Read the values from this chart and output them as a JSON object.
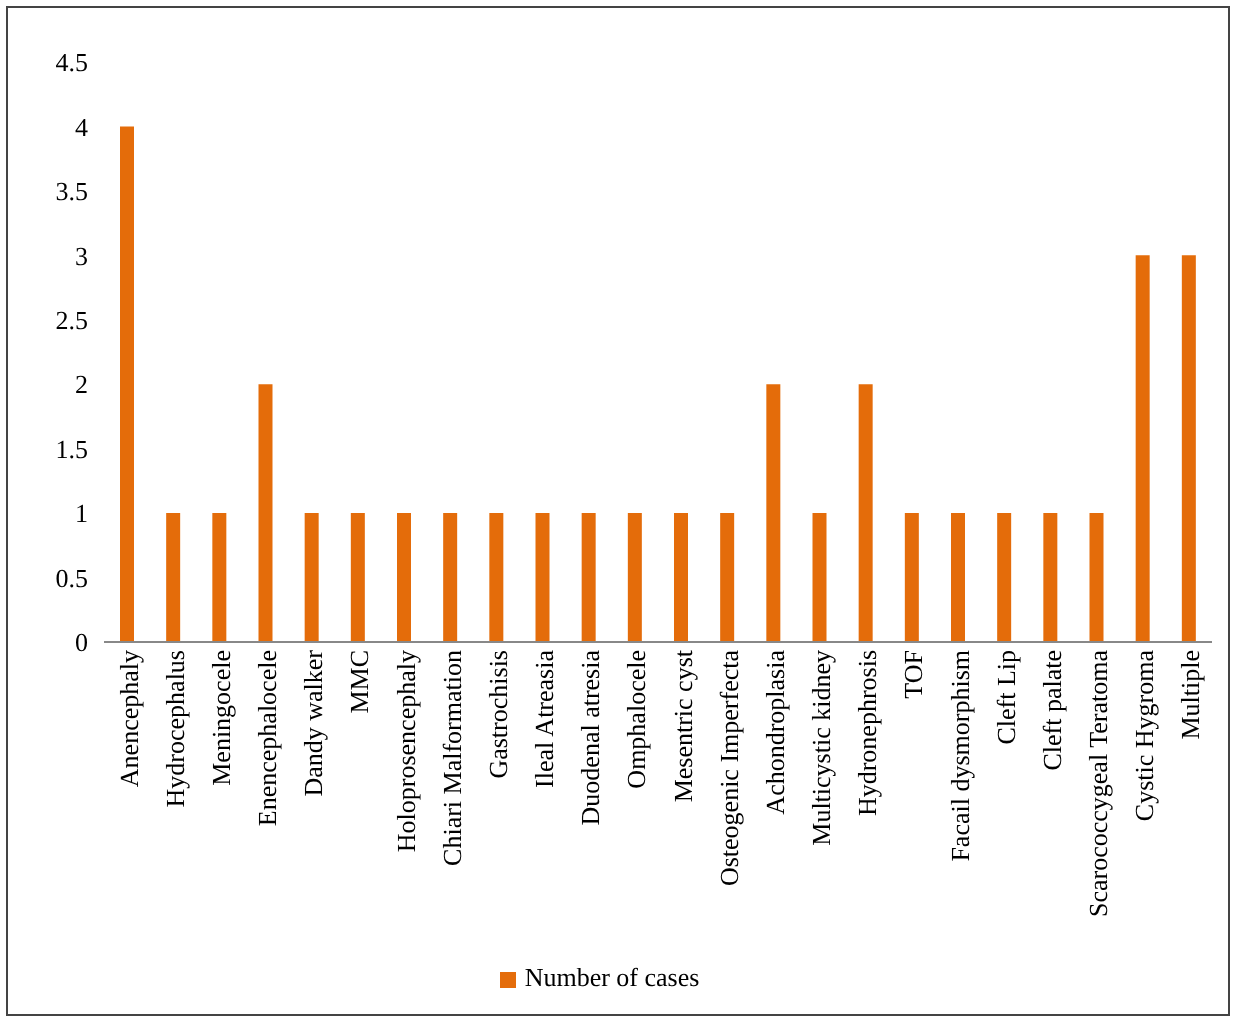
{
  "chart_data": {
    "type": "bar",
    "categories": [
      "Anencephaly",
      "Hydrocephalus",
      "Meningocele",
      "Enencephalocele",
      "Dandy walker",
      "MMC",
      "Holoprosencephaly",
      "Chiari Malformation",
      "Gastrochisis",
      "Ileal Atreasia",
      "Duodenal atresia",
      "Omphalocele",
      "Mesentric cyst",
      "Osteogenic Imperfecta",
      "Achondroplasia",
      "Multicystic kidney",
      "Hydronephrosis",
      "TOF",
      "Facail dysmorphism",
      "Cleft Lip",
      "Cleft palate",
      "Scarococcygeal Teratoma",
      "Cystic Hygroma",
      "Multiple"
    ],
    "series": [
      {
        "name": "Number of cases",
        "color": "#e46c0a",
        "values": [
          4,
          1,
          1,
          2,
          1,
          1,
          1,
          1,
          1,
          1,
          1,
          1,
          1,
          1,
          2,
          1,
          2,
          1,
          1,
          1,
          1,
          1,
          3,
          3
        ]
      }
    ],
    "ylim": [
      0,
      4.5
    ],
    "yticks": [
      0,
      0.5,
      1,
      1.5,
      2,
      2.5,
      3,
      3.5,
      4,
      4.5
    ],
    "grid": false,
    "legend": "bottom"
  }
}
